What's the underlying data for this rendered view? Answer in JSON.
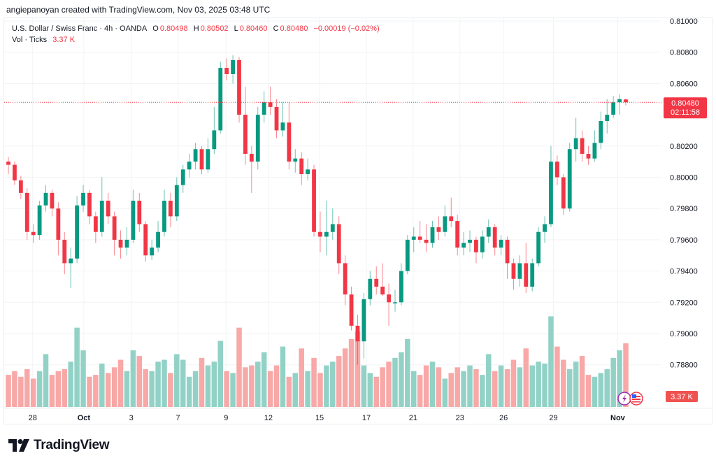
{
  "credit": "angiepanoyan created with TradingView.com, Nov 03, 2025 03:48 UTC",
  "legend": {
    "symbol": "U.S. Dollar / Swiss Franc · 4h · OANDA",
    "o_label": "O",
    "o": "0.80498",
    "h_label": "H",
    "h": "0.80502",
    "l_label": "L",
    "l": "0.80460",
    "c_label": "C",
    "c": "0.80480",
    "change": "−0.00019 (−0.02%)",
    "vol_label": "Vol · Ticks",
    "vol": "3.37 K"
  },
  "price_tag": {
    "price": "0.80480",
    "countdown": "02:11:58"
  },
  "vol_tag": "3.37 K",
  "footer": {
    "brand": "TradingView"
  },
  "colors": {
    "up": "#089981",
    "down": "#f23645",
    "up_vol": "#92d2c6",
    "down_vol": "#f7a8a7",
    "grid": "#f2f3f5"
  },
  "chart_data": {
    "type": "candlestick",
    "title": "U.S. Dollar / Swiss Franc · 4h · OANDA",
    "ylim": [
      0.786,
      0.811
    ],
    "y_ticks": [
      "0.81000",
      "0.80800",
      "0.80600",
      "0.80200",
      "0.80000",
      "0.79800",
      "0.79600",
      "0.79400",
      "0.79200",
      "0.79000",
      "0.78800"
    ],
    "y_tick_values": [
      0.81,
      0.808,
      0.806,
      0.802,
      0.8,
      0.798,
      0.796,
      0.794,
      0.792,
      0.79,
      0.788
    ],
    "x_ticks": [
      {
        "label": "28",
        "index": 3.9
      },
      {
        "label": "Oct",
        "index": 12.1
      },
      {
        "label": "3",
        "index": 19.7
      },
      {
        "label": "7",
        "index": 27.2
      },
      {
        "label": "9",
        "index": 34.9
      },
      {
        "label": "12",
        "index": 41.7
      },
      {
        "label": "15",
        "index": 49.9
      },
      {
        "label": "17",
        "index": 57.4
      },
      {
        "label": "21",
        "index": 64.9
      },
      {
        "label": "23",
        "index": 72.4
      },
      {
        "label": "26",
        "index": 79.4
      },
      {
        "label": "29",
        "index": 87.4
      },
      {
        "label": "Nov",
        "index": 97.7
      }
    ],
    "grid": true,
    "last_price": 0.8048,
    "ohlc": [
      [
        0.801,
        0.8013,
        0.8002,
        0.8008
      ],
      [
        0.8008,
        0.801,
        0.7995,
        0.7998
      ],
      [
        0.7998,
        0.8001,
        0.7986,
        0.799
      ],
      [
        0.799,
        0.7993,
        0.796,
        0.7965
      ],
      [
        0.7965,
        0.797,
        0.7958,
        0.7963
      ],
      [
        0.7963,
        0.7985,
        0.796,
        0.7982
      ],
      [
        0.7982,
        0.7995,
        0.7978,
        0.799
      ],
      [
        0.799,
        0.7992,
        0.7975,
        0.798
      ],
      [
        0.798,
        0.7984,
        0.795,
        0.796
      ],
      [
        0.796,
        0.7965,
        0.7938,
        0.7945
      ],
      [
        0.7945,
        0.7955,
        0.7929,
        0.7948
      ],
      [
        0.7948,
        0.7988,
        0.7945,
        0.7982
      ],
      [
        0.7982,
        0.7995,
        0.7978,
        0.799
      ],
      [
        0.799,
        0.7992,
        0.797,
        0.7975
      ],
      [
        0.7975,
        0.7978,
        0.7958,
        0.7965
      ],
      [
        0.7965,
        0.8,
        0.7962,
        0.7985
      ],
      [
        0.7985,
        0.799,
        0.797,
        0.7975
      ],
      [
        0.7975,
        0.7978,
        0.795,
        0.796
      ],
      [
        0.796,
        0.7966,
        0.7948,
        0.7955
      ],
      [
        0.7955,
        0.7968,
        0.795,
        0.796
      ],
      [
        0.796,
        0.7992,
        0.7958,
        0.7985
      ],
      [
        0.7985,
        0.799,
        0.7965,
        0.797
      ],
      [
        0.797,
        0.7972,
        0.7946,
        0.795
      ],
      [
        0.795,
        0.796,
        0.7947,
        0.7955
      ],
      [
        0.7955,
        0.7972,
        0.7952,
        0.7965
      ],
      [
        0.7965,
        0.7992,
        0.7962,
        0.7985
      ],
      [
        0.7985,
        0.799,
        0.7968,
        0.7975
      ],
      [
        0.7975,
        0.8,
        0.7972,
        0.7995
      ],
      [
        0.7995,
        0.8008,
        0.799,
        0.8005
      ],
      [
        0.8005,
        0.8015,
        0.8,
        0.801
      ],
      [
        0.801,
        0.8022,
        0.8005,
        0.8018
      ],
      [
        0.8018,
        0.802,
        0.8002,
        0.8005
      ],
      [
        0.8005,
        0.8025,
        0.8003,
        0.8018
      ],
      [
        0.8018,
        0.8045,
        0.8015,
        0.803
      ],
      [
        0.803,
        0.8074,
        0.8028,
        0.807
      ],
      [
        0.807,
        0.8076,
        0.8062,
        0.8066
      ],
      [
        0.8066,
        0.8078,
        0.806,
        0.8075
      ],
      [
        0.8075,
        0.8077,
        0.8035,
        0.804
      ],
      [
        0.804,
        0.8058,
        0.8008,
        0.8015
      ],
      [
        0.8015,
        0.802,
        0.799,
        0.801
      ],
      [
        0.801,
        0.8045,
        0.8005,
        0.804
      ],
      [
        0.804,
        0.8055,
        0.8035,
        0.8048
      ],
      [
        0.8048,
        0.8058,
        0.804,
        0.8045
      ],
      [
        0.8045,
        0.805,
        0.8025,
        0.803
      ],
      [
        0.803,
        0.8048,
        0.8026,
        0.8035
      ],
      [
        0.8035,
        0.8048,
        0.8005,
        0.801
      ],
      [
        0.801,
        0.8018,
        0.8003,
        0.8012
      ],
      [
        0.8012,
        0.8016,
        0.7995,
        0.8002
      ],
      [
        0.8002,
        0.8012,
        0.7998,
        0.8005
      ],
      [
        0.8005,
        0.8008,
        0.7962,
        0.7965
      ],
      [
        0.7965,
        0.7978,
        0.7952,
        0.7962
      ],
      [
        0.7962,
        0.7985,
        0.795,
        0.7965
      ],
      [
        0.7965,
        0.798,
        0.796,
        0.797
      ],
      [
        0.797,
        0.7975,
        0.7938,
        0.7945
      ],
      [
        0.7945,
        0.795,
        0.7918,
        0.7925
      ],
      [
        0.7925,
        0.793,
        0.7902,
        0.7905
      ],
      [
        0.7905,
        0.7912,
        0.788,
        0.7895
      ],
      [
        0.7895,
        0.7926,
        0.7884,
        0.7922
      ],
      [
        0.7922,
        0.794,
        0.7918,
        0.7935
      ],
      [
        0.7935,
        0.7943,
        0.7925,
        0.793
      ],
      [
        0.793,
        0.7945,
        0.7924,
        0.7925
      ],
      [
        0.7925,
        0.7932,
        0.7905,
        0.792
      ],
      [
        0.792,
        0.7928,
        0.7914,
        0.792
      ],
      [
        0.792,
        0.7945,
        0.7918,
        0.794
      ],
      [
        0.794,
        0.7963,
        0.7938,
        0.796
      ],
      [
        0.796,
        0.7968,
        0.7952,
        0.7962
      ],
      [
        0.7962,
        0.7972,
        0.7958,
        0.796
      ],
      [
        0.796,
        0.797,
        0.7952,
        0.7958
      ],
      [
        0.7958,
        0.7972,
        0.7955,
        0.7968
      ],
      [
        0.7968,
        0.7975,
        0.796,
        0.7965
      ],
      [
        0.7965,
        0.7982,
        0.7962,
        0.7975
      ],
      [
        0.7975,
        0.7987,
        0.7968,
        0.7972
      ],
      [
        0.7972,
        0.7976,
        0.795,
        0.7955
      ],
      [
        0.7955,
        0.7965,
        0.795,
        0.7958
      ],
      [
        0.7958,
        0.7966,
        0.7952,
        0.796
      ],
      [
        0.796,
        0.7962,
        0.7945,
        0.7952
      ],
      [
        0.7952,
        0.7966,
        0.7948,
        0.7962
      ],
      [
        0.7962,
        0.7973,
        0.7958,
        0.7968
      ],
      [
        0.7968,
        0.797,
        0.795,
        0.7955
      ],
      [
        0.7955,
        0.7963,
        0.795,
        0.796
      ],
      [
        0.796,
        0.7962,
        0.7935,
        0.7945
      ],
      [
        0.7945,
        0.7948,
        0.7928,
        0.7935
      ],
      [
        0.7935,
        0.795,
        0.793,
        0.7945
      ],
      [
        0.7945,
        0.7958,
        0.7926,
        0.793
      ],
      [
        0.793,
        0.7948,
        0.7927,
        0.7945
      ],
      [
        0.7945,
        0.7968,
        0.7943,
        0.7965
      ],
      [
        0.7965,
        0.7975,
        0.7958,
        0.797
      ],
      [
        0.797,
        0.802,
        0.7968,
        0.801
      ],
      [
        0.801,
        0.8014,
        0.7995,
        0.8
      ],
      [
        0.8,
        0.8002,
        0.7976,
        0.798
      ],
      [
        0.798,
        0.8022,
        0.7978,
        0.8018
      ],
      [
        0.8018,
        0.8038,
        0.801,
        0.8025
      ],
      [
        0.8025,
        0.803,
        0.801,
        0.8015
      ],
      [
        0.8015,
        0.802,
        0.8008,
        0.8012
      ],
      [
        0.8012,
        0.803,
        0.801,
        0.8022
      ],
      [
        0.8022,
        0.8042,
        0.8018,
        0.8036
      ],
      [
        0.8036,
        0.805,
        0.8028,
        0.804
      ],
      [
        0.804,
        0.8052,
        0.8038,
        0.8048
      ],
      [
        0.8048,
        0.8053,
        0.804,
        0.805
      ],
      [
        0.80498,
        0.80502,
        0.8046,
        0.8048
      ]
    ],
    "volume_k": [
      1.7,
      1.9,
      1.6,
      2.0,
      1.5,
      1.9,
      2.8,
      1.7,
      1.9,
      2.0,
      2.4,
      4.2,
      3.0,
      1.6,
      1.7,
      2.3,
      1.8,
      2.1,
      2.5,
      1.9,
      3.0,
      2.7,
      2.0,
      1.9,
      2.4,
      2.5,
      1.8,
      2.8,
      2.5,
      1.6,
      1.9,
      2.6,
      2.2,
      2.4,
      3.5,
      1.9,
      1.8,
      4.2,
      2.1,
      2.2,
      2.4,
      2.9,
      1.9,
      2.2,
      3.2,
      1.6,
      1.8,
      3.1,
      1.9,
      2.6,
      1.8,
      2.2,
      2.4,
      2.7,
      3.1,
      3.6,
      4.0,
      2.2,
      1.8,
      1.6,
      2.1,
      2.4,
      2.6,
      2.9,
      3.6,
      1.9,
      1.7,
      2.2,
      2.4,
      2.1,
      1.5,
      1.8,
      2.1,
      1.9,
      2.2,
      2.0,
      1.7,
      2.8,
      1.9,
      2.2,
      2.0,
      2.5,
      2.1,
      3.1,
      2.2,
      2.4,
      2.3,
      4.8,
      3.2,
      2.5,
      2.0,
      2.4,
      2.7,
      1.7,
      1.6,
      1.8,
      2.0,
      2.6,
      3.0,
      3.37
    ]
  }
}
